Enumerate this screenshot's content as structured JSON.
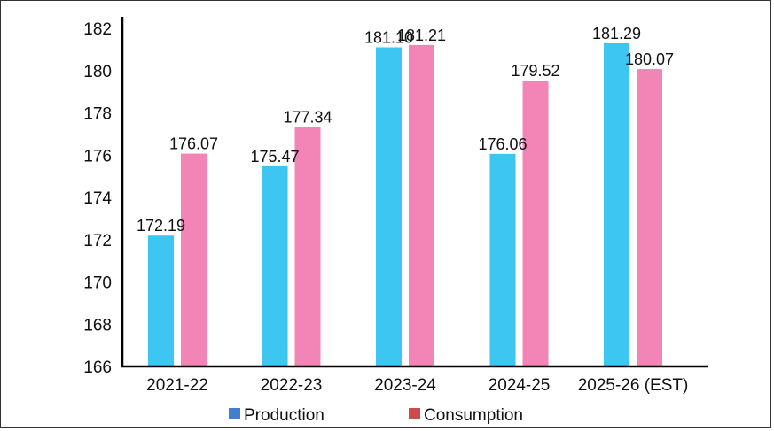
{
  "chart_data": {
    "type": "bar",
    "categories": [
      "2021-22",
      "2022-23",
      "2023-24",
      "2024-25",
      "2025-26 (EST)"
    ],
    "series": [
      {
        "name": "Production",
        "values": [
          172.19,
          175.47,
          181.1,
          176.06,
          181.29
        ],
        "color": "#3ec6f2",
        "legend_color": "#3f7fcf"
      },
      {
        "name": "Consumption",
        "values": [
          176.07,
          177.34,
          181.21,
          179.52,
          180.07
        ],
        "color": "#f384b6",
        "legend_color": "#cf4b4b"
      }
    ],
    "value_labels": [
      [
        "172.19",
        "175.47",
        "181.10",
        "176.06",
        "181.29"
      ],
      [
        "176.07",
        "177.34",
        "181.21",
        "179.52",
        "180.07"
      ]
    ],
    "yticks": [
      "166",
      "168",
      "170",
      "172",
      "174",
      "176",
      "178",
      "180",
      "182"
    ],
    "ylim": [
      166,
      182
    ],
    "grid": false,
    "legend_position": "bottom-center",
    "title": "",
    "xlabel": "",
    "ylabel": ""
  }
}
